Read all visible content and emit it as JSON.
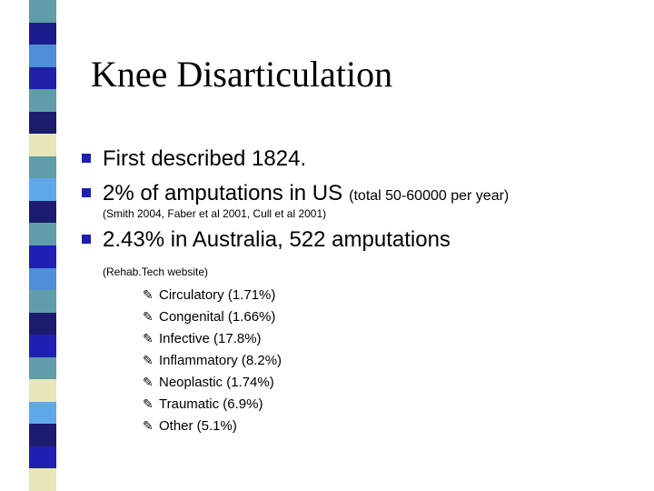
{
  "slide": {
    "title": "Knee Disarticulation",
    "stripe_colors": [
      "#5f9ea8",
      "#1c1c8a",
      "#4f8fd6",
      "#1f1fa8",
      "#5f9ea8",
      "#1c1c6e",
      "#e6e6b8",
      "#5f9ea8",
      "#5fa8ea",
      "#1c1c6e",
      "#5f9ea8",
      "#1f1fb4",
      "#4f8fd6",
      "#5f9ea8",
      "#1c1c6e",
      "#1f1fb4",
      "#5f9ea8",
      "#e6e6b8",
      "#5fa8ea",
      "#1c1c6e",
      "#1f1fb4",
      "#e6e6b8"
    ],
    "bullet_color": "#1f1fb4",
    "bullets": [
      {
        "main": "First described 1824.",
        "note": ""
      },
      {
        "main": "2% of amputations in US",
        "note": "(total 50-60000 per year)"
      },
      {
        "main": "2.43% in Australia, 522 amputations",
        "note": ""
      }
    ],
    "references": [
      "(Smith 2004, Faber et al 2001, Cull et al 2001)",
      "(Rehab.Tech website)"
    ],
    "sub_bullet_icon": "pencil-icon",
    "causes": [
      "Circulatory (1.71%)",
      "Congenital (1.66%)",
      "Infective (17.8%)",
      "Inflammatory (8.2%)",
      "Neoplastic (1.74%)",
      "Traumatic (6.9%)",
      "Other (5.1%)"
    ]
  }
}
